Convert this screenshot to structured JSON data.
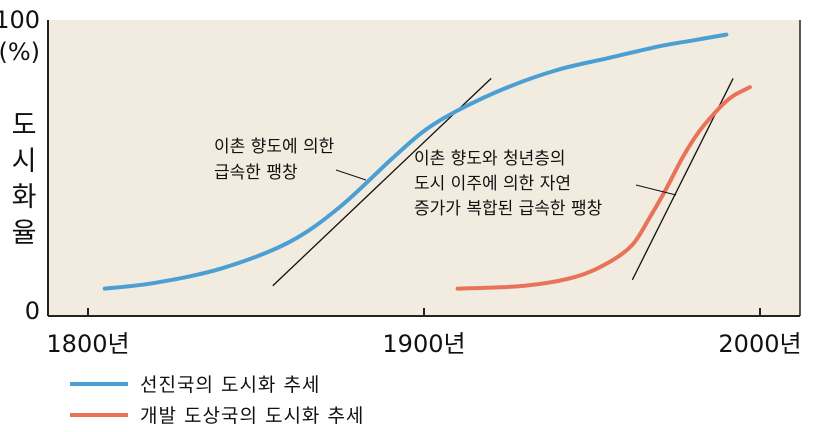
{
  "chart_data": {
    "type": "line",
    "title": "",
    "xlabel": "",
    "ylabel": "도시화율",
    "ylabel_chars": [
      "도",
      "시",
      "화",
      "율"
    ],
    "xlim": [
      1800,
      2010
    ],
    "ylim": [
      0,
      100
    ],
    "x_ticks": [
      {
        "value": 1800,
        "label": "1800년"
      },
      {
        "value": 1900,
        "label": "1900년"
      },
      {
        "value": 2000,
        "label": "2000년"
      }
    ],
    "y_ticks": [
      {
        "value": 0,
        "label": "0"
      },
      {
        "value": 100,
        "label": "100"
      }
    ],
    "y_unit": "(%)",
    "grid": false,
    "legend_position": "bottom-left",
    "series": [
      {
        "name": "선진국의 도시화 추세",
        "color": "#4a9fd5",
        "points": [
          [
            1805,
            8
          ],
          [
            1820,
            10
          ],
          [
            1840,
            15
          ],
          [
            1860,
            24
          ],
          [
            1875,
            36
          ],
          [
            1890,
            52
          ],
          [
            1900,
            62
          ],
          [
            1910,
            69
          ],
          [
            1925,
            77
          ],
          [
            1940,
            83
          ],
          [
            1955,
            87
          ],
          [
            1970,
            91
          ],
          [
            1980,
            93
          ],
          [
            1990,
            95
          ]
        ]
      },
      {
        "name": "개발 도상국의 도시화 추세",
        "color": "#e8735a",
        "points": [
          [
            1910,
            8
          ],
          [
            1930,
            9
          ],
          [
            1945,
            12
          ],
          [
            1955,
            17
          ],
          [
            1962,
            23
          ],
          [
            1967,
            32
          ],
          [
            1972,
            42
          ],
          [
            1977,
            53
          ],
          [
            1982,
            62
          ],
          [
            1988,
            70
          ],
          [
            1992,
            74
          ],
          [
            1997,
            77
          ]
        ]
      }
    ],
    "tangents": [
      {
        "from": [
          1855,
          9
        ],
        "to": [
          1920,
          80
        ]
      },
      {
        "from": [
          1962,
          11
        ],
        "to": [
          1992,
          80
        ]
      }
    ],
    "annotations": [
      {
        "id": "developed",
        "lines": [
          "이촌 향도에 의한",
          "급속한 팽창"
        ]
      },
      {
        "id": "developing",
        "lines": [
          "이촌 향도와 청년층의",
          "도시 이주에 의한 자연",
          "증가가 복합된 급속한 팽창"
        ]
      }
    ]
  }
}
